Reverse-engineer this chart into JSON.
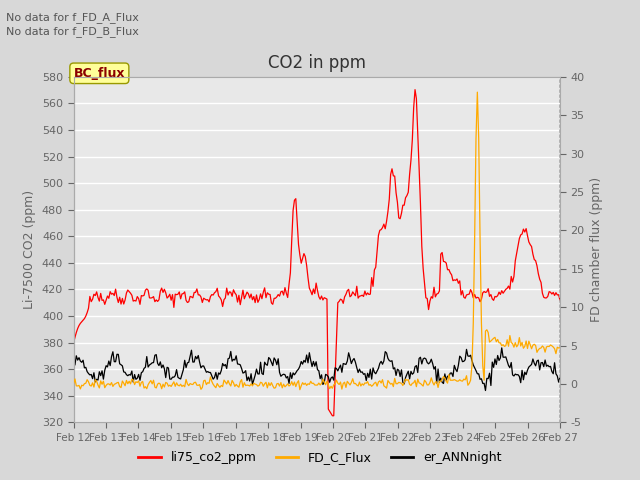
{
  "title": "CO2 in ppm",
  "ylabel_left": "Li-7500 CO2 (ppm)",
  "ylabel_right": "FD chamber flux (ppm)",
  "ylim_left": [
    320,
    580
  ],
  "ylim_right": [
    -5,
    40
  ],
  "yticks_left": [
    320,
    340,
    360,
    380,
    400,
    420,
    440,
    460,
    480,
    500,
    520,
    540,
    560,
    580
  ],
  "yticks_right": [
    -5,
    0,
    5,
    10,
    15,
    20,
    25,
    30,
    35,
    40
  ],
  "xtick_labels": [
    "Feb 12",
    "Feb 13",
    "Feb 14",
    "Feb 15",
    "Feb 16",
    "Feb 17",
    "Feb 18",
    "Feb 19",
    "Feb 20",
    "Feb 21",
    "Feb 22",
    "Feb 23",
    "Feb 24",
    "Feb 25",
    "Feb 26",
    "Feb 27"
  ],
  "annotation_text1": "No data for f_FD_A_Flux",
  "annotation_text2": "No data for f_FD_B_Flux",
  "bc_flux_label": "BC_flux",
  "legend_entries": [
    "li75_co2_ppm",
    "FD_C_Flux",
    "er_ANNnight"
  ],
  "line_colors": [
    "#ff0000",
    "#ffaa00",
    "#000000"
  ],
  "fig_bg_color": "#d8d8d8",
  "plot_bg_color": "#e8e8e8",
  "grid_color": "#ffffff"
}
